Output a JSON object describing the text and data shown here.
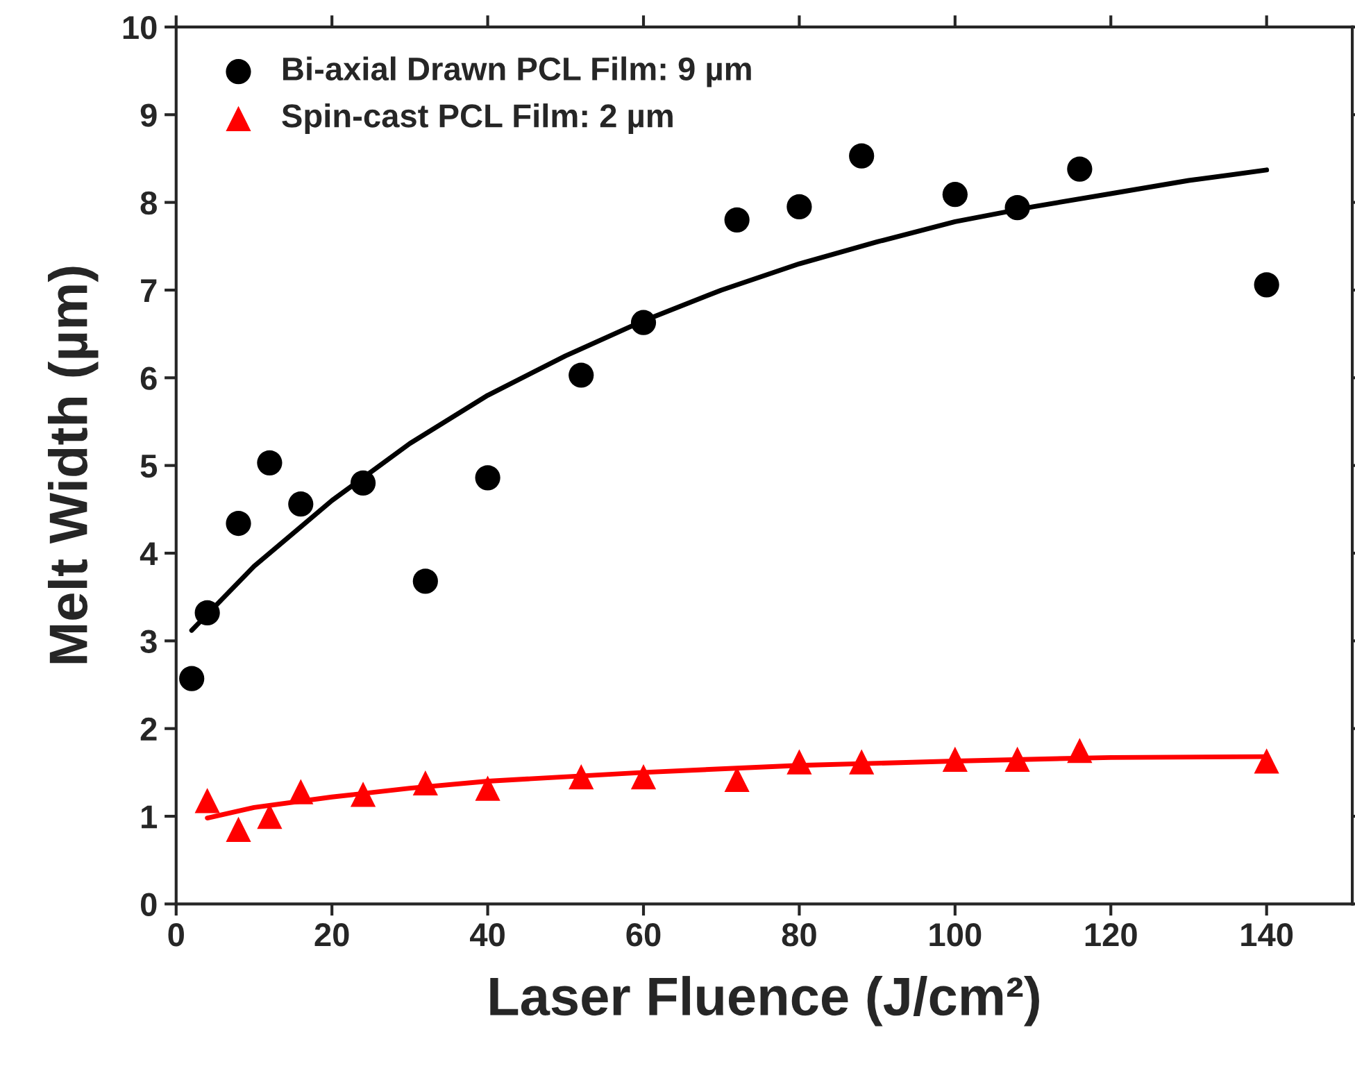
{
  "chart_data": {
    "type": "scatter",
    "xlabel": "Laser Fluence (J/cm²)",
    "ylabel": "Melt Width (µm)",
    "xlim": [
      0,
      151
    ],
    "ylim": [
      0,
      10
    ],
    "xticks": [
      0,
      20,
      40,
      60,
      80,
      100,
      120,
      140
    ],
    "yticks": [
      0,
      1,
      2,
      3,
      4,
      5,
      6,
      7,
      8,
      9,
      10
    ],
    "grid": false,
    "legend": "top left",
    "series": [
      {
        "name": "Bi-axial Drawn PCL Film: 9 µm",
        "color": "#000000",
        "marker": "circle",
        "x": [
          2,
          4,
          8,
          12,
          16,
          24,
          32,
          40,
          52,
          60,
          72,
          80,
          88,
          100,
          108,
          116,
          140
        ],
        "values": [
          2.57,
          3.32,
          4.34,
          5.03,
          4.56,
          4.8,
          3.68,
          4.86,
          6.03,
          6.63,
          7.8,
          7.95,
          8.53,
          8.09,
          7.94,
          8.38,
          7.06
        ]
      },
      {
        "name": "Spin-cast PCL Film: 2 µm",
        "color": "#ff0000",
        "marker": "triangle",
        "x": [
          4,
          8,
          12,
          16,
          24,
          32,
          40,
          52,
          60,
          72,
          80,
          88,
          100,
          108,
          116,
          140
        ],
        "values": [
          1.18,
          0.85,
          1.0,
          1.28,
          1.25,
          1.38,
          1.32,
          1.45,
          1.45,
          1.42,
          1.62,
          1.62,
          1.65,
          1.65,
          1.75,
          1.63
        ]
      },
      {
        "type": "line",
        "color": "#000000",
        "marker": "none",
        "x": [
          2,
          10,
          20,
          30,
          40,
          50,
          60,
          70,
          80,
          90,
          100,
          110,
          120,
          130,
          140
        ],
        "values": [
          3.12,
          3.85,
          4.6,
          5.25,
          5.8,
          6.25,
          6.65,
          7.0,
          7.3,
          7.55,
          7.78,
          7.95,
          8.1,
          8.25,
          8.37
        ]
      },
      {
        "type": "line",
        "color": "#ff0000",
        "marker": "none",
        "x": [
          4,
          10,
          20,
          30,
          40,
          60,
          80,
          100,
          120,
          140
        ],
        "values": [
          0.98,
          1.1,
          1.22,
          1.32,
          1.4,
          1.5,
          1.58,
          1.63,
          1.67,
          1.68
        ]
      }
    ]
  }
}
